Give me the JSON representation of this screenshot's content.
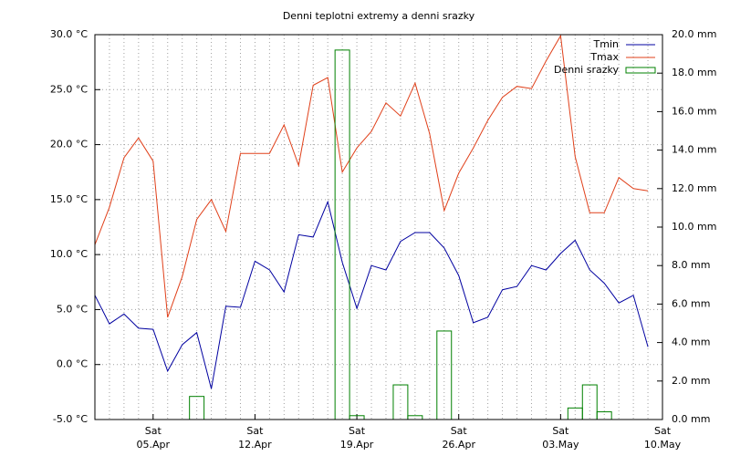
{
  "chart_data": {
    "type": "line",
    "title": "Denni teplotni extremy a denni srazky",
    "x": [
      "01.Apr",
      "02.Apr",
      "03.Apr",
      "04.Apr",
      "05.Apr",
      "06.Apr",
      "07.Apr",
      "08.Apr",
      "09.Apr",
      "10.Apr",
      "11.Apr",
      "12.Apr",
      "13.Apr",
      "14.Apr",
      "15.Apr",
      "16.Apr",
      "17.Apr",
      "18.Apr",
      "19.Apr",
      "20.Apr",
      "21.Apr",
      "22.Apr",
      "23.Apr",
      "24.Apr",
      "25.Apr",
      "26.Apr",
      "27.Apr",
      "28.Apr",
      "29.Apr",
      "30.Apr",
      "01.May",
      "02.May",
      "03.May",
      "04.May",
      "05.May",
      "06.May",
      "07.May",
      "08.May",
      "09.May"
    ],
    "xlim": [
      "01.Apr",
      "10.May"
    ],
    "xticks": [
      {
        "value": "05.Apr",
        "label": "Sat"
      },
      {
        "value": "12.Apr",
        "label": "Sat"
      },
      {
        "value": "19.Apr",
        "label": "Sat"
      },
      {
        "value": "26.Apr",
        "label": "Sat"
      },
      {
        "value": "03.May",
        "label": "Sat"
      },
      {
        "value": "10.May",
        "label": "Sat"
      }
    ],
    "ylim": [
      -5,
      30
    ],
    "yticks": [
      {
        "value": -5,
        "label": "-5.0 °C"
      },
      {
        "value": 0,
        "label": "0.0 °C"
      },
      {
        "value": 5,
        "label": "5.0 °C"
      },
      {
        "value": 10,
        "label": "10.0 °C"
      },
      {
        "value": 15,
        "label": "15.0 °C"
      },
      {
        "value": 20,
        "label": "20.0 °C"
      },
      {
        "value": 25,
        "label": "25.0 °C"
      },
      {
        "value": 30,
        "label": "30.0 °C"
      }
    ],
    "y2lim": [
      0,
      20
    ],
    "y2ticks": [
      {
        "value": 0,
        "label": "0.0 mm"
      },
      {
        "value": 2,
        "label": "2.0 mm"
      },
      {
        "value": 4,
        "label": "4.0 mm"
      },
      {
        "value": 6,
        "label": "6.0 mm"
      },
      {
        "value": 8,
        "label": "8.0 mm"
      },
      {
        "value": 10,
        "label": "10.0 mm"
      },
      {
        "value": 12,
        "label": "12.0 mm"
      },
      {
        "value": 14,
        "label": "14.0 mm"
      },
      {
        "value": 16,
        "label": "16.0 mm"
      },
      {
        "value": 18,
        "label": "18.0 mm"
      },
      {
        "value": 20,
        "label": "20.0 mm"
      }
    ],
    "grid": true,
    "legend": "top-right",
    "series": [
      {
        "name": "Tmin",
        "color": "#0000a0",
        "values": [
          6.3,
          3.7,
          4.6,
          3.3,
          3.2,
          -0.6,
          1.8,
          2.9,
          -2.2,
          5.3,
          5.2,
          9.4,
          8.6,
          6.6,
          11.8,
          11.6,
          14.8,
          9.3,
          5.1,
          9.0,
          8.6,
          11.2,
          12.0,
          12.0,
          10.6,
          8.1,
          3.8,
          4.3,
          6.8,
          7.1,
          9.0,
          8.6,
          10.1,
          11.3,
          8.6,
          7.4,
          5.6,
          6.3,
          1.6
        ]
      },
      {
        "name": "Tmax",
        "color": "#e0401a",
        "values": [
          10.9,
          14.3,
          18.8,
          20.6,
          18.5,
          4.3,
          8.0,
          13.2,
          15.0,
          12.1,
          19.2,
          19.2,
          19.2,
          21.8,
          18.1,
          25.4,
          26.1,
          17.5,
          19.7,
          21.2,
          23.8,
          22.6,
          25.6,
          21.0,
          14.0,
          17.4,
          19.7,
          22.2,
          24.3,
          25.3,
          25.1,
          27.6,
          29.9,
          18.9,
          13.8,
          13.8,
          17.0,
          16.0,
          15.8
        ]
      },
      {
        "name": "Denni srazky",
        "color": "#008000",
        "type": "bar",
        "axis": "y2",
        "values": [
          0,
          0,
          0,
          0,
          0,
          0,
          0,
          1.2,
          0,
          0,
          0,
          0,
          0,
          0,
          0,
          0,
          0,
          19.2,
          0.2,
          0,
          0,
          1.8,
          0.2,
          0,
          4.6,
          0,
          0,
          0,
          0,
          0,
          0,
          0,
          0,
          0.6,
          1.8,
          0.4,
          0,
          0,
          0
        ]
      }
    ]
  }
}
